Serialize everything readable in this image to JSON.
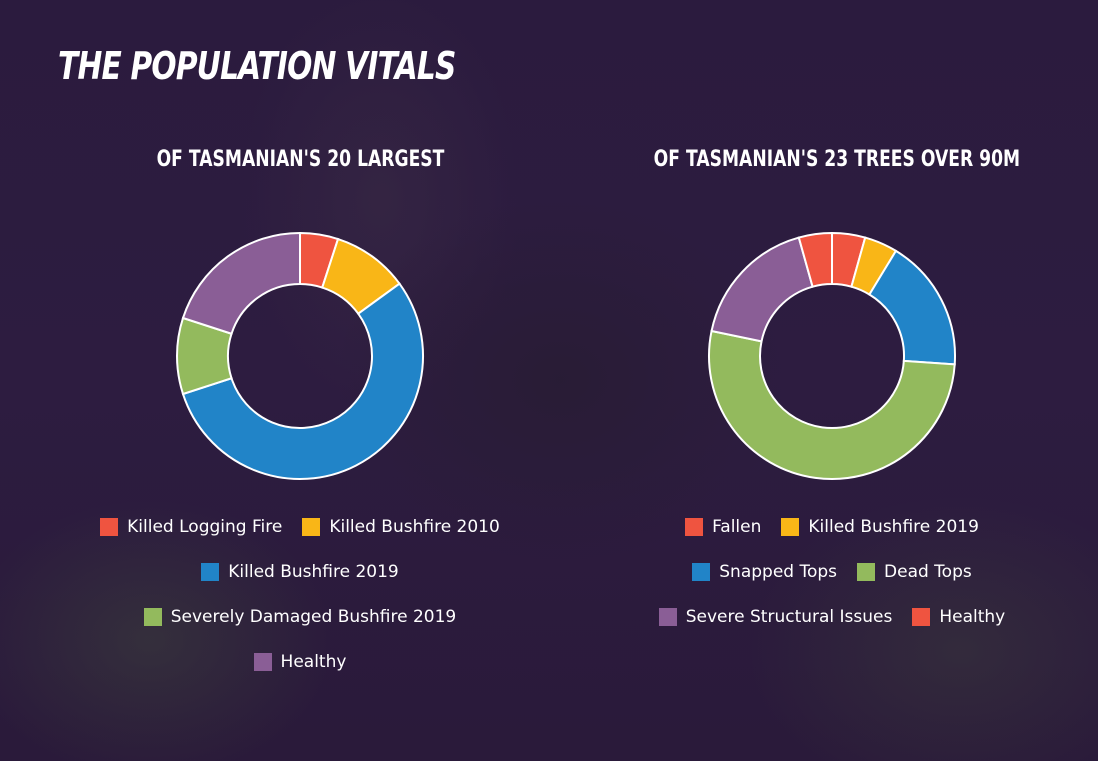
{
  "page": {
    "title": "THE POPULATION VITALS"
  },
  "chart_data": [
    {
      "type": "pie",
      "title": "OF TASMANIAN'S 20 LARGEST",
      "categories": [
        "Killed Logging Fire",
        "Killed Bushfire 2010",
        "Killed Bushfire 2019",
        "Severely Damaged Bushfire 2019",
        "Healthy"
      ],
      "values": [
        1,
        2,
        11,
        2,
        4
      ],
      "colors": [
        "#ef5440",
        "#f9b617",
        "#2184c8",
        "#93ba5d",
        "#8a5e96"
      ],
      "legend_rows": [
        [
          0,
          1
        ],
        [
          2
        ],
        [
          3
        ],
        [
          4
        ]
      ],
      "legend_placement": "bottom"
    },
    {
      "type": "pie",
      "title": "OF TASMANIAN'S 23 TREES OVER 90M",
      "categories": [
        "Fallen",
        "Killed Bushfire 2019",
        "Snapped Tops",
        "Dead Tops",
        "Severe Structural Issues",
        "Healthy"
      ],
      "values": [
        1,
        1,
        4,
        12,
        4,
        1
      ],
      "colors": [
        "#ef5440",
        "#f9b617",
        "#2184c8",
        "#93ba5d",
        "#8a5e96",
        "#ef5440"
      ],
      "legend_rows": [
        [
          0,
          1
        ],
        [
          2,
          3
        ],
        [
          4,
          5
        ]
      ],
      "legend_placement": "bottom"
    }
  ]
}
